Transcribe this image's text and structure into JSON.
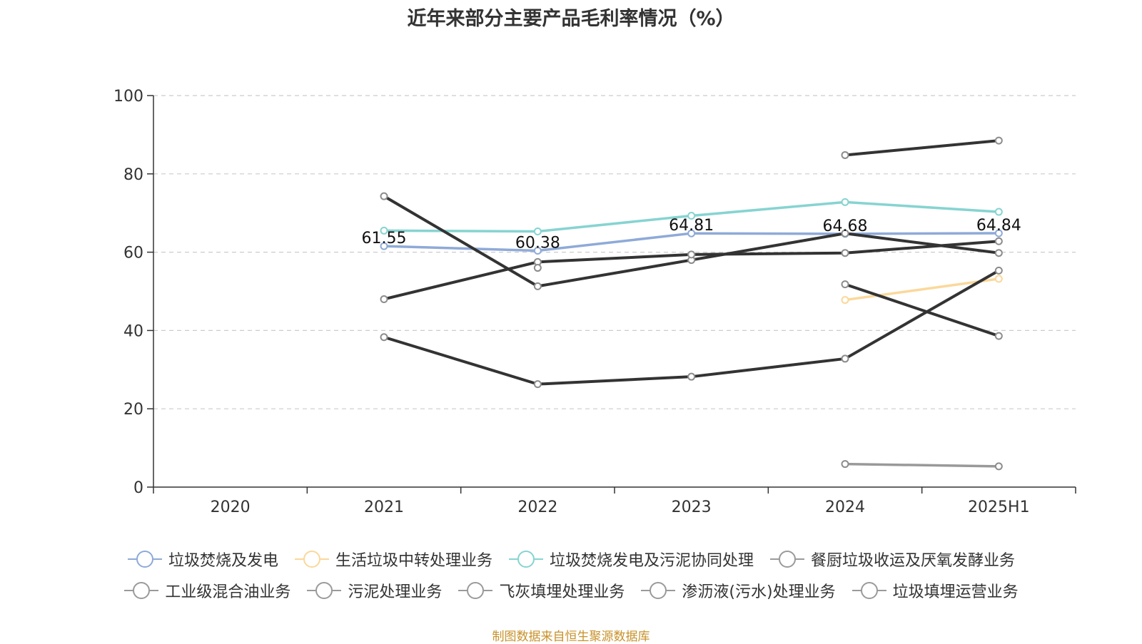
{
  "title": "近年来部分主要产品毛利率情况（%）",
  "source": "制图数据来自恒生聚源数据库",
  "colors": {
    "axis": "#333333",
    "grid": "#cccccc",
    "text": "#333333",
    "source": "#c8922a"
  },
  "chart_data": {
    "type": "line",
    "categories": [
      "2020",
      "2021",
      "2022",
      "2023",
      "2024",
      "2025H1"
    ],
    "ylim": [
      0,
      100
    ],
    "yticks": [
      0,
      20,
      40,
      60,
      80,
      100
    ],
    "grid": true,
    "legend_position": "bottom",
    "series": [
      {
        "name": "垃圾焚烧及发电",
        "color": "#8eaad8",
        "values": [
          null,
          61.55,
          60.38,
          64.81,
          64.68,
          64.84
        ],
        "labels": [
          null,
          "61.55",
          "60.38",
          "64.81",
          "64.68",
          "64.84"
        ]
      },
      {
        "name": "生活垃圾中转处理业务",
        "color": "#fbd89a",
        "values": [
          null,
          null,
          null,
          null,
          47.8,
          53.2
        ]
      },
      {
        "name": "垃圾焚烧发电及污泥协同处理",
        "color": "#86d4d1",
        "values": [
          null,
          65.5,
          65.3,
          69.3,
          72.8,
          70.3
        ]
      },
      {
        "name": "餐厨垃圾收运及厌氧发酵业务",
        "color": "#333333",
        "values": [
          null,
          74.3,
          51.3,
          58.0,
          64.8,
          59.8
        ]
      },
      {
        "name": "工业级混合油业务",
        "color": "#333333",
        "values": [
          null,
          null,
          null,
          null,
          84.8,
          88.5
        ]
      },
      {
        "name": "污泥处理业务",
        "color": "#333333",
        "values": [
          null,
          38.3,
          26.3,
          28.2,
          32.8,
          55.3
        ]
      },
      {
        "name": "飞灰填埋处理业务",
        "color": "#333333",
        "values": [
          null,
          48.0,
          57.5,
          59.4,
          59.8,
          62.8
        ]
      },
      {
        "name": "渗沥液(污水)处理业务",
        "color": "#333333",
        "values": [
          null,
          null,
          null,
          null,
          51.8,
          38.6
        ]
      },
      {
        "name": "垃圾填埋运营业务",
        "color": "#999999",
        "values": [
          null,
          null,
          null,
          null,
          5.9,
          5.3
        ]
      }
    ],
    "isolated_points": [
      {
        "category": "2022",
        "value": 56.0
      }
    ],
    "legend": {
      "row1": [
        "垃圾焚烧及发电",
        "生活垃圾中转处理业务",
        "垃圾焚烧发电及污泥协同处理",
        "餐厨垃圾收运及厌氧发酵业务"
      ],
      "row2": [
        "工业级混合油业务",
        "污泥处理业务",
        "飞灰填埋处理业务",
        "渗沥液(污水)处理业务",
        "垃圾填埋运营业务"
      ]
    }
  }
}
